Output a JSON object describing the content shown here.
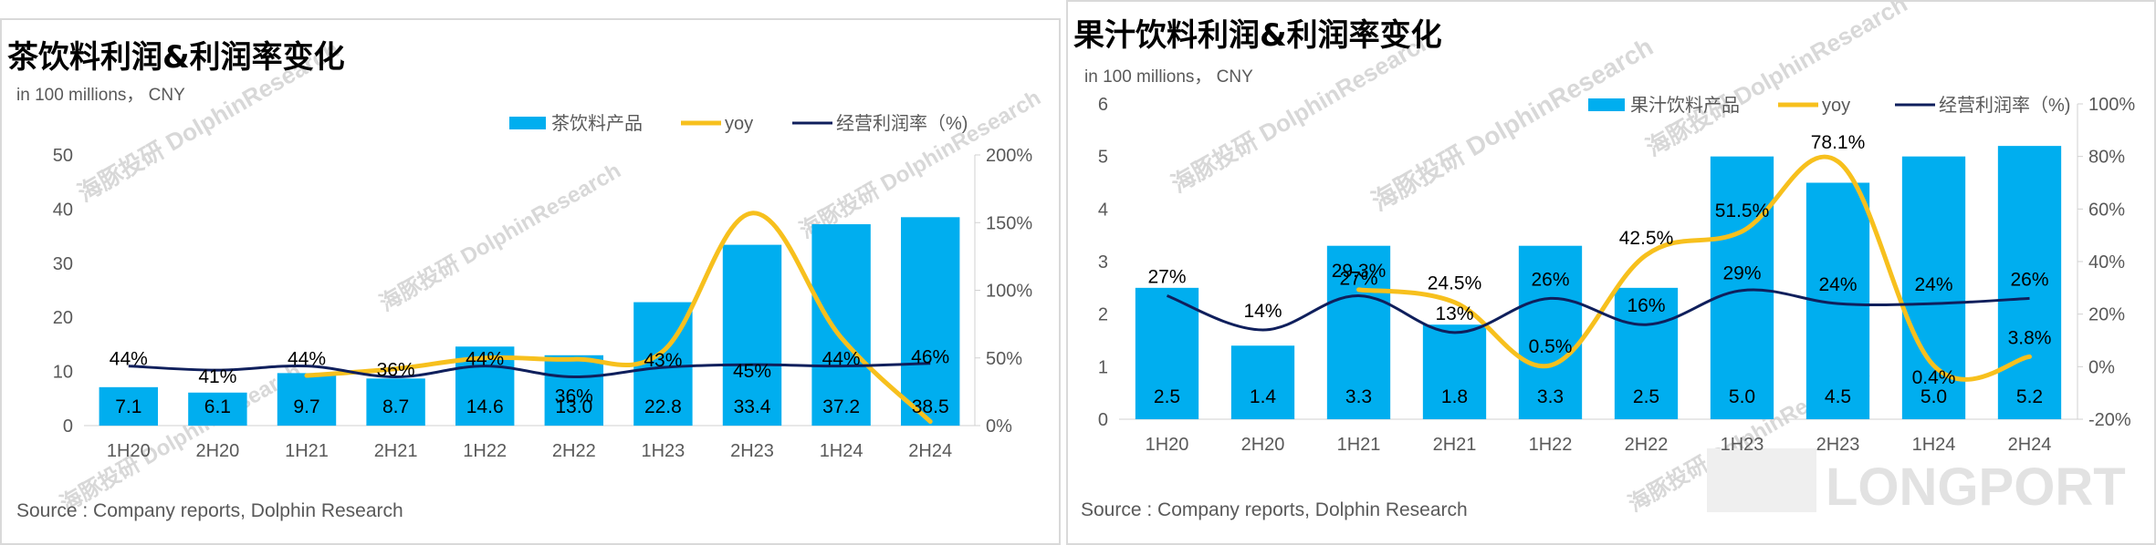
{
  "charts": [
    {
      "title": "茶饮料利润&利润率变化",
      "unit": "in 100 millions， CNY",
      "source": "Source : Company reports, Dolphin Research",
      "watermark": "海豚投研 DolphinResearch",
      "legend": [
        "茶饮料产品",
        "yoy",
        "经营利润率（%)"
      ],
      "left_ticks": [
        "0",
        "10",
        "20",
        "30",
        "40",
        "50"
      ],
      "right_ticks": [
        "0%",
        "50%",
        "100%",
        "150%",
        "200%"
      ],
      "bar_labels": [
        "7.1",
        "6.1",
        "9.7",
        "8.7",
        "14.6",
        "13.0",
        "22.8",
        "33.4",
        "37.2",
        "38.5"
      ],
      "margin_labels": [
        "44%",
        "41%",
        "44%",
        "36%",
        "44%",
        "36%",
        "43%",
        "45%",
        "44%",
        "46%"
      ],
      "yoy_labels": []
    },
    {
      "title": "果汁饮料利润&利润率变化",
      "unit": "in 100 millions， CNY",
      "source": "Source : Company reports, Dolphin Research",
      "watermark": "海豚投研 DolphinResearch",
      "logo": "LONGPORT",
      "legend": [
        "果汁饮料产品",
        "yoy",
        "经营利润率（%)"
      ],
      "left_ticks": [
        "0",
        "1",
        "2",
        "3",
        "4",
        "5",
        "6"
      ],
      "right_ticks": [
        "-20%",
        "0%",
        "20%",
        "40%",
        "60%",
        "80%",
        "100%"
      ],
      "bar_labels": [
        "2.5",
        "1.4",
        "3.3",
        "1.8",
        "3.3",
        "2.5",
        "5.0",
        "4.5",
        "5.0",
        "5.2"
      ],
      "margin_labels": [
        "27%",
        "14%",
        "27%",
        "13%",
        "26%",
        "16%",
        "29%",
        "24%",
        "24%",
        "26%"
      ],
      "yoy_labels": [
        "29.3%",
        "24.5%",
        "0.5%",
        "42.5%",
        "51.5%",
        "78.1%",
        "0.4%",
        "3.8%"
      ]
    }
  ],
  "chart_data": [
    {
      "type": "bar",
      "title": "茶饮料利润&利润率变化",
      "ylabel": "in 100 millions， CNY",
      "categories": [
        "1H20",
        "2H20",
        "1H21",
        "2H21",
        "1H22",
        "2H22",
        "1H23",
        "2H23",
        "1H24",
        "2H24"
      ],
      "ylim": [
        0,
        50
      ],
      "y2lim": [
        0,
        200
      ],
      "colors": {
        "bar": "#00aeef",
        "yoy": "#f7c01d",
        "margin": "#0f1f5c"
      },
      "series": [
        {
          "name": "茶饮料产品",
          "type": "bar",
          "axis": "left",
          "values": [
            7.1,
            6.1,
            9.7,
            8.7,
            14.6,
            13.0,
            22.8,
            33.4,
            37.2,
            38.5
          ]
        },
        {
          "name": "yoy",
          "type": "line",
          "axis": "right",
          "smooth": true,
          "values": [
            null,
            null,
            37,
            42,
            50,
            49,
            55,
            157,
            65,
            3
          ]
        },
        {
          "name": "经营利润率（%)",
          "type": "line",
          "axis": "right",
          "values": [
            44,
            41,
            44,
            36,
            44,
            36,
            43,
            45,
            44,
            46
          ]
        }
      ],
      "legend_position": "top-right",
      "grid": false
    },
    {
      "type": "bar",
      "title": "果汁饮料利润&利润率变化",
      "ylabel": "in 100 millions， CNY",
      "categories": [
        "1H20",
        "2H20",
        "1H21",
        "2H21",
        "1H22",
        "2H22",
        "1H23",
        "2H23",
        "1H24",
        "2H24"
      ],
      "ylim": [
        0,
        6
      ],
      "y2lim": [
        -20,
        100
      ],
      "colors": {
        "bar": "#00aeef",
        "yoy": "#f7c01d",
        "margin": "#0f1f5c"
      },
      "series": [
        {
          "name": "果汁饮料产品",
          "type": "bar",
          "axis": "left",
          "values": [
            2.5,
            1.4,
            3.3,
            1.8,
            3.3,
            2.5,
            5.0,
            4.5,
            5.0,
            5.2
          ]
        },
        {
          "name": "yoy",
          "type": "line",
          "axis": "right",
          "smooth": true,
          "values": [
            null,
            null,
            29.3,
            24.5,
            0.5,
            42.5,
            51.5,
            78.1,
            0.4,
            3.8
          ]
        },
        {
          "name": "经营利润率（%)",
          "type": "line",
          "axis": "right",
          "values": [
            27,
            14,
            27,
            13,
            26,
            16,
            29,
            24,
            24,
            26
          ]
        }
      ],
      "legend_position": "top-right",
      "grid": false
    }
  ]
}
